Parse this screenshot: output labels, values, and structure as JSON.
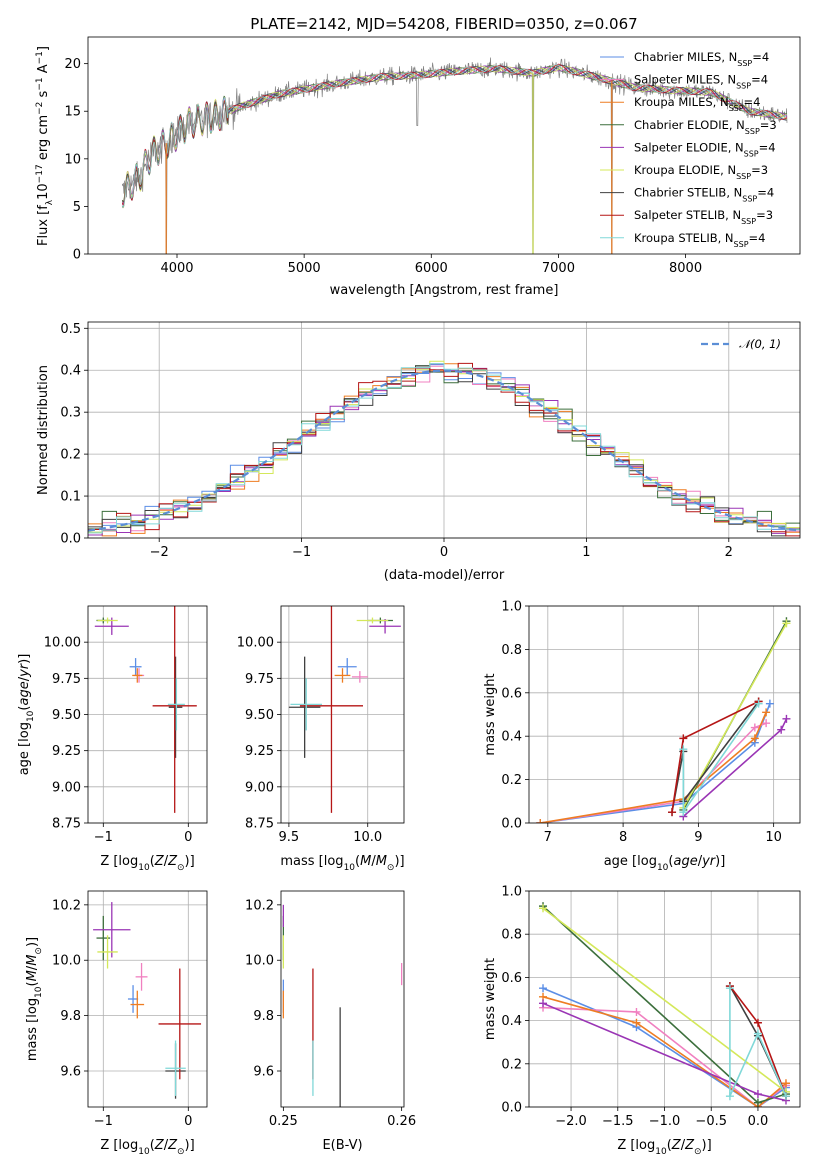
{
  "figure": {
    "title": "PLATE=2142, MJD=54208, FIBERID=0350, z=0.067"
  },
  "series_colors": {
    "Chabrier MILES": "#5b8ee6",
    "Salpeter MILES": "#f080c0",
    "Kroupa MILES": "#ee7d22",
    "Chabrier ELODIE": "#3c6f3c",
    "Salpeter ELODIE": "#9a35b5",
    "Kroupa ELODIE": "#d4e85a",
    "Chabrier STELIB": "#404040",
    "Salpeter STELIB": "#b51616",
    "Kroupa STELIB": "#80d8d8",
    "data": "#808080",
    "normal": "#5b8ed6"
  },
  "chart_data": [
    {
      "id": "spectrum",
      "type": "line",
      "xlabel": "wavelength [Angstrom, rest frame]",
      "ylabel_parts": [
        "Flux [f",
        "λ",
        "10",
        "−17",
        " erg cm",
        "−2",
        " s",
        "−1",
        " A",
        "−1",
        "]"
      ],
      "xlim": [
        3300,
        8900
      ],
      "ylim": [
        0,
        22.8
      ],
      "xticks": [
        4000,
        5000,
        6000,
        7000,
        8000
      ],
      "yticks": [
        0,
        5,
        10,
        15,
        20
      ],
      "grid": false,
      "legend_position": "lower-right",
      "legend": [
        {
          "name": "Chabrier MILES",
          "nssp": "4"
        },
        {
          "name": "Salpeter MILES",
          "nssp": "4"
        },
        {
          "name": "Kroupa MILES",
          "nssp": "4"
        },
        {
          "name": "Chabrier ELODIE",
          "nssp": "3"
        },
        {
          "name": "Salpeter ELODIE",
          "nssp": "4"
        },
        {
          "name": "Kroupa ELODIE",
          "nssp": "3"
        },
        {
          "name": "Chabrier STELIB",
          "nssp": "4"
        },
        {
          "name": "Salpeter STELIB",
          "nssp": "3"
        },
        {
          "name": "Kroupa STELIB",
          "nssp": "4"
        }
      ],
      "continuum": {
        "wavelength": [
          3570,
          3700,
          3800,
          3950,
          4100,
          4300,
          4500,
          4800,
          5000,
          5300,
          5600,
          5900,
          6200,
          6500,
          6800,
          7000,
          7300,
          7600,
          7900,
          8200,
          8500,
          8800
        ],
        "flux": [
          6.5,
          8.0,
          10.5,
          12.0,
          13.8,
          14.5,
          15.5,
          16.8,
          17.3,
          18.0,
          18.6,
          18.8,
          19.2,
          19.5,
          19.0,
          19.6,
          18.6,
          17.5,
          17.2,
          17.0,
          15.0,
          14.4
        ]
      },
      "glitches": [
        {
          "wavelength": 3915,
          "flux_min": 0.0
        },
        {
          "wavelength": 6800,
          "flux_min": 0.0
        },
        {
          "wavelength": 7420,
          "flux_min": 0.0
        }
      ]
    },
    {
      "id": "residuals",
      "type": "line",
      "xlabel": "(data-model)/error",
      "ylabel": "Normed distribution",
      "xlim": [
        -2.5,
        2.5
      ],
      "ylim": [
        0,
        0.515
      ],
      "xticks": [
        -2,
        -1,
        0,
        1,
        2
      ],
      "yticks": [
        0.0,
        0.1,
        0.2,
        0.3,
        0.4,
        0.5
      ],
      "grid": true,
      "legend_position": "top-right",
      "legend": [
        {
          "name": "N(0, 1)",
          "style": "dashed"
        }
      ],
      "bin_width": 0.1
    },
    {
      "id": "age-vs-Z",
      "type": "scatter",
      "xlabel": "Z [log10(Z/Z⊙)]",
      "ylabel": "age  [log10(age/yr)]",
      "xlim": [
        -1.18,
        0.22
      ],
      "ylim": [
        8.75,
        10.25
      ],
      "xticks": [
        -1,
        0
      ],
      "yticks": [
        8.75,
        9.0,
        9.25,
        9.5,
        9.75,
        10.0
      ],
      "grid": true,
      "points": [
        {
          "series": "Chabrier MILES",
          "x": -0.62,
          "y": 9.83,
          "xerr": 0.07,
          "yerr": 0.06
        },
        {
          "series": "Salpeter MILES",
          "x": -0.58,
          "y": 9.77,
          "xerr": 0.06,
          "yerr": 0.05
        },
        {
          "series": "Kroupa MILES",
          "x": -0.6,
          "y": 9.77,
          "xerr": 0.06,
          "yerr": 0.05
        },
        {
          "series": "Chabrier ELODIE",
          "x": -1.0,
          "y": 10.15,
          "xerr": 0.08,
          "yerr": 0.02
        },
        {
          "series": "Salpeter ELODIE",
          "x": -0.9,
          "y": 10.11,
          "xerr": 0.2,
          "yerr": 0.06
        },
        {
          "series": "Kroupa ELODIE",
          "x": -0.95,
          "y": 10.15,
          "xerr": 0.12,
          "yerr": 0.02
        },
        {
          "series": "Chabrier STELIB",
          "x": -0.15,
          "y": 9.55,
          "xerr": 0.08,
          "yerr": 0.35
        },
        {
          "series": "Salpeter STELIB",
          "x": -0.16,
          "y": 9.56,
          "xerr": 0.26,
          "yerr": 0.74
        },
        {
          "series": "Kroupa STELIB",
          "x": -0.14,
          "y": 9.57,
          "xerr": 0.1,
          "yerr": 0.18
        }
      ]
    },
    {
      "id": "age-vs-mass",
      "type": "scatter",
      "xlabel": "mass [log10(M/M⊙)]",
      "ylabel": "",
      "xlim": [
        9.45,
        10.23
      ],
      "ylim": [
        8.75,
        10.25
      ],
      "xticks": [
        9.5,
        10.0
      ],
      "yticks": [
        8.75,
        9.0,
        9.25,
        9.5,
        9.75,
        10.0
      ],
      "grid": true,
      "points": [
        {
          "series": "Chabrier MILES",
          "x": 9.87,
          "y": 9.83,
          "xerr": 0.06,
          "yerr": 0.06
        },
        {
          "series": "Salpeter MILES",
          "x": 9.95,
          "y": 9.76,
          "xerr": 0.05,
          "yerr": 0.04
        },
        {
          "series": "Kroupa MILES",
          "x": 9.84,
          "y": 9.77,
          "xerr": 0.05,
          "yerr": 0.05
        },
        {
          "series": "Chabrier ELODIE",
          "x": 10.08,
          "y": 10.15,
          "xerr": 0.08,
          "yerr": 0.02
        },
        {
          "series": "Salpeter ELODIE",
          "x": 10.11,
          "y": 10.11,
          "xerr": 0.1,
          "yerr": 0.05
        },
        {
          "series": "Kroupa ELODIE",
          "x": 10.03,
          "y": 10.15,
          "xerr": 0.1,
          "yerr": 0.02
        },
        {
          "series": "Chabrier STELIB",
          "x": 9.6,
          "y": 9.55,
          "xerr": 0.1,
          "yerr": 0.35
        },
        {
          "series": "Salpeter STELIB",
          "x": 9.77,
          "y": 9.56,
          "xerr": 0.2,
          "yerr": 0.74
        },
        {
          "series": "Kroupa STELIB",
          "x": 9.61,
          "y": 9.57,
          "xerr": 0.1,
          "yerr": 0.18
        }
      ]
    },
    {
      "id": "weight-vs-age",
      "type": "line",
      "xlabel": "age  [log10(age/yr)]",
      "ylabel": "mass weight",
      "xlim": [
        6.75,
        10.35
      ],
      "ylim": [
        0,
        1.0
      ],
      "xticks": [
        7,
        8,
        9,
        10
      ],
      "yticks": [
        0.0,
        0.2,
        0.4,
        0.6,
        0.8,
        1.0
      ],
      "grid": true,
      "series": [
        {
          "name": "Chabrier MILES",
          "x": [
            6.9,
            8.8,
            9.75,
            9.95
          ],
          "y": [
            0.0,
            0.09,
            0.37,
            0.55
          ]
        },
        {
          "name": "Salpeter MILES",
          "x": [
            6.9,
            8.8,
            9.75,
            9.9
          ],
          "y": [
            0.0,
            0.1,
            0.44,
            0.46
          ]
        },
        {
          "name": "Kroupa MILES",
          "x": [
            6.9,
            8.8,
            9.75,
            9.9
          ],
          "y": [
            0.0,
            0.11,
            0.39,
            0.51
          ]
        },
        {
          "name": "Chabrier ELODIE",
          "x": [
            8.8,
            10.17
          ],
          "y": [
            0.06,
            0.93
          ]
        },
        {
          "name": "Salpeter ELODIE",
          "x": [
            8.8,
            10.1,
            10.17
          ],
          "y": [
            0.03,
            0.43,
            0.48
          ]
        },
        {
          "name": "Kroupa ELODIE",
          "x": [
            8.8,
            10.17
          ],
          "y": [
            0.07,
            0.92
          ]
        },
        {
          "name": "Chabrier STELIB",
          "x": [
            8.65,
            8.8,
            8.8,
            9.8
          ],
          "y": [
            0.05,
            0.33,
            0.1,
            0.56
          ]
        },
        {
          "name": "Salpeter STELIB",
          "x": [
            8.65,
            8.8,
            9.8
          ],
          "y": [
            0.05,
            0.39,
            0.56
          ]
        },
        {
          "name": "Kroupa STELIB",
          "x": [
            8.8,
            8.8,
            9.8
          ],
          "y": [
            0.34,
            0.05,
            0.55
          ]
        }
      ]
    },
    {
      "id": "mass-vs-Z",
      "type": "scatter",
      "xlabel": "Z [log10(Z/Z⊙)]",
      "ylabel": "mass [log10(M/M⊙)]",
      "xlim": [
        -1.18,
        0.22
      ],
      "ylim": [
        9.47,
        10.25
      ],
      "xticks": [
        -1,
        0
      ],
      "yticks": [
        9.6,
        9.8,
        10.0,
        10.2
      ],
      "grid": true,
      "points": [
        {
          "series": "Chabrier MILES",
          "x": -0.65,
          "y": 9.86,
          "xerr": 0.06,
          "yerr": 0.05
        },
        {
          "series": "Salpeter MILES",
          "x": -0.55,
          "y": 9.94,
          "xerr": 0.07,
          "yerr": 0.05
        },
        {
          "series": "Kroupa MILES",
          "x": -0.6,
          "y": 9.84,
          "xerr": 0.08,
          "yerr": 0.05
        },
        {
          "series": "Chabrier ELODIE",
          "x": -1.0,
          "y": 10.08,
          "xerr": 0.08,
          "yerr": 0.08
        },
        {
          "series": "Salpeter ELODIE",
          "x": -0.9,
          "y": 10.11,
          "xerr": 0.22,
          "yerr": 0.1
        },
        {
          "series": "Kroupa ELODIE",
          "x": -0.95,
          "y": 10.03,
          "xerr": 0.12,
          "yerr": 0.06
        },
        {
          "series": "Chabrier STELIB",
          "x": -0.15,
          "y": 9.6,
          "xerr": 0.12,
          "yerr": 0.1
        },
        {
          "series": "Salpeter STELIB",
          "x": -0.1,
          "y": 9.77,
          "xerr": 0.25,
          "yerr": 0.2
        },
        {
          "series": "Kroupa STELIB",
          "x": -0.15,
          "y": 9.61,
          "xerr": 0.12,
          "yerr": 0.1
        }
      ]
    },
    {
      "id": "mass-vs-ebv",
      "type": "scatter",
      "xlabel": "E(B-V)",
      "ylabel": "",
      "xlim": [
        0.2498,
        0.2602
      ],
      "ylim": [
        9.47,
        10.25
      ],
      "xticks": [
        0.25,
        0.26
      ],
      "xtick_labels": [
        "0.25",
        "0.26"
      ],
      "yticks": [
        9.6,
        9.8,
        10.0,
        10.2
      ],
      "grid": false,
      "points": [
        {
          "series": "Chabrier MILES",
          "x": 0.25,
          "y": 9.87,
          "xerr": 0,
          "yerr": 0.06
        },
        {
          "series": "Salpeter MILES",
          "x": 0.26,
          "y": 9.95,
          "xerr": 0,
          "yerr": 0.04
        },
        {
          "series": "Kroupa MILES",
          "x": 0.25,
          "y": 9.84,
          "xerr": 0,
          "yerr": 0.05
        },
        {
          "series": "Chabrier ELODIE",
          "x": 0.25,
          "y": 10.08,
          "xerr": 0,
          "yerr": 0.08
        },
        {
          "series": "Salpeter ELODIE",
          "x": 0.25,
          "y": 10.16,
          "xerr": 0,
          "yerr": 0.04
        },
        {
          "series": "Kroupa ELODIE",
          "x": 0.25,
          "y": 10.03,
          "xerr": 0,
          "yerr": 0.06
        },
        {
          "series": "Chabrier STELIB",
          "x": 0.2548,
          "y": 9.65,
          "xerr": 0,
          "yerr": 0.18
        },
        {
          "series": "Salpeter STELIB",
          "x": 0.2525,
          "y": 9.77,
          "xerr": 0,
          "yerr": 0.2
        },
        {
          "series": "Kroupa STELIB",
          "x": 0.2525,
          "y": 9.61,
          "xerr": 0,
          "yerr": 0.1
        }
      ]
    },
    {
      "id": "weight-vs-Z",
      "type": "line",
      "xlabel": "Z [log10(Z/Z⊙)]",
      "ylabel": "mass weight",
      "xlim": [
        -2.45,
        0.45
      ],
      "ylim": [
        0,
        1.0
      ],
      "xticks": [
        -2.0,
        -1.5,
        -1.0,
        -0.5,
        0.0
      ],
      "xtick_labels": [
        "−2.0",
        "−1.5",
        "−1.0",
        "−0.5",
        "0.0"
      ],
      "yticks": [
        0.0,
        0.2,
        0.4,
        0.6,
        0.8,
        1.0
      ],
      "grid": true,
      "series": [
        {
          "name": "Chabrier MILES",
          "x": [
            -2.3,
            -1.3,
            0.0,
            0.3
          ],
          "y": [
            0.55,
            0.37,
            0.0,
            0.09
          ]
        },
        {
          "name": "Salpeter MILES",
          "x": [
            -2.3,
            -1.3,
            0.0,
            0.3
          ],
          "y": [
            0.46,
            0.44,
            0.0,
            0.1
          ]
        },
        {
          "name": "Kroupa MILES",
          "x": [
            -2.3,
            -1.3,
            0.0,
            0.3
          ],
          "y": [
            0.51,
            0.39,
            0.0,
            0.11
          ]
        },
        {
          "name": "Chabrier ELODIE",
          "x": [
            -2.3,
            0.0,
            0.3
          ],
          "y": [
            0.93,
            0.02,
            0.06
          ]
        },
        {
          "name": "Salpeter ELODIE",
          "x": [
            -2.3,
            0.0,
            0.3
          ],
          "y": [
            0.48,
            0.06,
            0.03
          ]
        },
        {
          "name": "Kroupa ELODIE",
          "x": [
            -2.3,
            0.3
          ],
          "y": [
            0.92,
            0.07
          ]
        },
        {
          "name": "Chabrier STELIB",
          "x": [
            -0.3,
            0.0,
            0.3
          ],
          "y": [
            0.56,
            0.33,
            0.05
          ]
        },
        {
          "name": "Salpeter STELIB",
          "x": [
            -0.3,
            0.0,
            0.3
          ],
          "y": [
            0.56,
            0.39,
            0.05
          ]
        },
        {
          "name": "Kroupa STELIB",
          "x": [
            -0.3,
            -0.3,
            0.0,
            0.3
          ],
          "y": [
            0.55,
            0.05,
            0.34,
            0.05
          ]
        }
      ]
    }
  ]
}
